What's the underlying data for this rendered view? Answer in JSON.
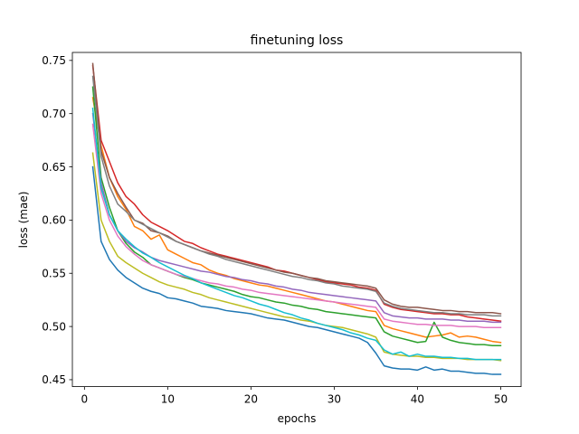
{
  "chart_data": {
    "type": "line",
    "title": "finetuning loss",
    "xlabel": "epochs",
    "ylabel": "loss (mae)",
    "xlim": [
      -1.45,
      52.45
    ],
    "ylim": [
      0.4435,
      0.7575
    ],
    "xticks": [
      0,
      10,
      20,
      30,
      40,
      50
    ],
    "yticks": [
      0.45,
      0.5,
      0.55,
      0.6,
      0.65,
      0.7,
      0.75
    ],
    "ytick_labels": [
      "0.45",
      "0.50",
      "0.55",
      "0.60",
      "0.65",
      "0.70",
      "0.75"
    ],
    "grid": false,
    "x": [
      1,
      2,
      3,
      4,
      5,
      6,
      7,
      8,
      9,
      10,
      11,
      12,
      13,
      14,
      15,
      16,
      17,
      18,
      19,
      20,
      21,
      22,
      23,
      24,
      25,
      26,
      27,
      28,
      29,
      30,
      31,
      32,
      33,
      34,
      35,
      36,
      37,
      38,
      39,
      40,
      41,
      42,
      43,
      44,
      45,
      46,
      47,
      48,
      49,
      50
    ],
    "series": [
      {
        "color": "#1f77b4",
        "values": [
          0.65,
          0.58,
          0.563,
          0.553,
          0.546,
          0.541,
          0.536,
          0.533,
          0.531,
          0.527,
          0.526,
          0.524,
          0.522,
          0.519,
          0.518,
          0.517,
          0.515,
          0.514,
          0.513,
          0.512,
          0.51,
          0.508,
          0.507,
          0.506,
          0.504,
          0.502,
          0.5,
          0.499,
          0.497,
          0.495,
          0.493,
          0.491,
          0.489,
          0.485,
          0.475,
          0.463,
          0.461,
          0.46,
          0.46,
          0.459,
          0.462,
          0.459,
          0.46,
          0.458,
          0.458,
          0.457,
          0.456,
          0.456,
          0.455,
          0.455
        ]
      },
      {
        "color": "#ff7f0e",
        "values": [
          0.715,
          0.67,
          0.64,
          0.622,
          0.61,
          0.594,
          0.59,
          0.582,
          0.586,
          0.572,
          0.568,
          0.564,
          0.56,
          0.558,
          0.553,
          0.55,
          0.548,
          0.545,
          0.543,
          0.541,
          0.539,
          0.538,
          0.536,
          0.534,
          0.532,
          0.53,
          0.528,
          0.526,
          0.524,
          0.523,
          0.521,
          0.519,
          0.517,
          0.515,
          0.514,
          0.501,
          0.498,
          0.496,
          0.494,
          0.492,
          0.49,
          0.491,
          0.492,
          0.494,
          0.49,
          0.491,
          0.49,
          0.488,
          0.486,
          0.485
        ]
      },
      {
        "color": "#2ca02c",
        "values": [
          0.725,
          0.64,
          0.612,
          0.59,
          0.578,
          0.57,
          0.565,
          0.558,
          0.555,
          0.552,
          0.549,
          0.546,
          0.544,
          0.541,
          0.539,
          0.537,
          0.535,
          0.533,
          0.53,
          0.528,
          0.527,
          0.525,
          0.523,
          0.522,
          0.52,
          0.519,
          0.517,
          0.516,
          0.514,
          0.513,
          0.512,
          0.511,
          0.51,
          0.509,
          0.508,
          0.495,
          0.491,
          0.489,
          0.487,
          0.485,
          0.486,
          0.504,
          0.49,
          0.487,
          0.485,
          0.484,
          0.483,
          0.483,
          0.482,
          0.482
        ]
      },
      {
        "color": "#d62728",
        "values": [
          0.745,
          0.675,
          0.655,
          0.635,
          0.622,
          0.615,
          0.605,
          0.598,
          0.594,
          0.59,
          0.585,
          0.58,
          0.578,
          0.574,
          0.571,
          0.568,
          0.566,
          0.564,
          0.562,
          0.56,
          0.558,
          0.556,
          0.553,
          0.552,
          0.55,
          0.548,
          0.546,
          0.544,
          0.542,
          0.541,
          0.54,
          0.539,
          0.537,
          0.536,
          0.534,
          0.521,
          0.518,
          0.516,
          0.515,
          0.514,
          0.513,
          0.512,
          0.512,
          0.511,
          0.511,
          0.509,
          0.508,
          0.507,
          0.506,
          0.505
        ]
      },
      {
        "color": "#9467bd",
        "values": [
          0.7,
          0.635,
          0.605,
          0.59,
          0.58,
          0.574,
          0.57,
          0.565,
          0.562,
          0.56,
          0.558,
          0.556,
          0.554,
          0.552,
          0.551,
          0.549,
          0.547,
          0.546,
          0.544,
          0.543,
          0.541,
          0.54,
          0.538,
          0.537,
          0.535,
          0.534,
          0.532,
          0.531,
          0.53,
          0.529,
          0.528,
          0.527,
          0.526,
          0.525,
          0.524,
          0.513,
          0.51,
          0.509,
          0.508,
          0.508,
          0.507,
          0.507,
          0.507,
          0.506,
          0.506,
          0.505,
          0.505,
          0.505,
          0.504,
          0.504
        ]
      },
      {
        "color": "#8c564b",
        "values": [
          0.747,
          0.665,
          0.64,
          0.625,
          0.612,
          0.6,
          0.597,
          0.59,
          0.588,
          0.585,
          0.58,
          0.577,
          0.574,
          0.571,
          0.569,
          0.567,
          0.565,
          0.563,
          0.561,
          0.559,
          0.557,
          0.555,
          0.553,
          0.551,
          0.55,
          0.548,
          0.546,
          0.545,
          0.543,
          0.542,
          0.541,
          0.54,
          0.539,
          0.538,
          0.536,
          0.525,
          0.521,
          0.519,
          0.518,
          0.518,
          0.517,
          0.516,
          0.515,
          0.515,
          0.514,
          0.514,
          0.513,
          0.513,
          0.513,
          0.512
        ]
      },
      {
        "color": "#e377c2",
        "values": [
          0.69,
          0.625,
          0.6,
          0.585,
          0.575,
          0.568,
          0.562,
          0.558,
          0.555,
          0.552,
          0.549,
          0.547,
          0.545,
          0.543,
          0.541,
          0.54,
          0.538,
          0.537,
          0.535,
          0.534,
          0.532,
          0.531,
          0.53,
          0.529,
          0.528,
          0.527,
          0.526,
          0.525,
          0.524,
          0.523,
          0.522,
          0.521,
          0.52,
          0.519,
          0.518,
          0.507,
          0.505,
          0.504,
          0.503,
          0.502,
          0.502,
          0.501,
          0.501,
          0.501,
          0.5,
          0.5,
          0.5,
          0.499,
          0.499,
          0.499
        ]
      },
      {
        "color": "#7f7f7f",
        "values": [
          0.735,
          0.66,
          0.632,
          0.615,
          0.608,
          0.6,
          0.596,
          0.592,
          0.588,
          0.584,
          0.58,
          0.577,
          0.574,
          0.571,
          0.568,
          0.566,
          0.563,
          0.561,
          0.559,
          0.557,
          0.555,
          0.553,
          0.551,
          0.549,
          0.547,
          0.546,
          0.544,
          0.543,
          0.541,
          0.54,
          0.538,
          0.537,
          0.536,
          0.535,
          0.533,
          0.522,
          0.519,
          0.517,
          0.516,
          0.515,
          0.514,
          0.513,
          0.513,
          0.512,
          0.512,
          0.511,
          0.511,
          0.511,
          0.51,
          0.51
        ]
      },
      {
        "color": "#bcbd22",
        "values": [
          0.663,
          0.6,
          0.58,
          0.566,
          0.56,
          0.555,
          0.55,
          0.546,
          0.542,
          0.539,
          0.537,
          0.535,
          0.532,
          0.53,
          0.527,
          0.525,
          0.523,
          0.521,
          0.519,
          0.517,
          0.515,
          0.513,
          0.511,
          0.509,
          0.508,
          0.506,
          0.505,
          0.503,
          0.501,
          0.5,
          0.499,
          0.497,
          0.495,
          0.493,
          0.49,
          0.476,
          0.474,
          0.473,
          0.472,
          0.472,
          0.471,
          0.471,
          0.47,
          0.47,
          0.47,
          0.469,
          0.469,
          0.469,
          0.469,
          0.468
        ]
      },
      {
        "color": "#17becf",
        "values": [
          0.705,
          0.63,
          0.605,
          0.59,
          0.582,
          0.575,
          0.569,
          0.565,
          0.56,
          0.556,
          0.552,
          0.548,
          0.545,
          0.541,
          0.538,
          0.535,
          0.532,
          0.529,
          0.527,
          0.524,
          0.521,
          0.519,
          0.516,
          0.513,
          0.511,
          0.508,
          0.506,
          0.503,
          0.501,
          0.499,
          0.497,
          0.494,
          0.492,
          0.489,
          0.487,
          0.478,
          0.474,
          0.476,
          0.472,
          0.474,
          0.472,
          0.472,
          0.471,
          0.471,
          0.47,
          0.47,
          0.469,
          0.469,
          0.469,
          0.469
        ]
      }
    ]
  }
}
